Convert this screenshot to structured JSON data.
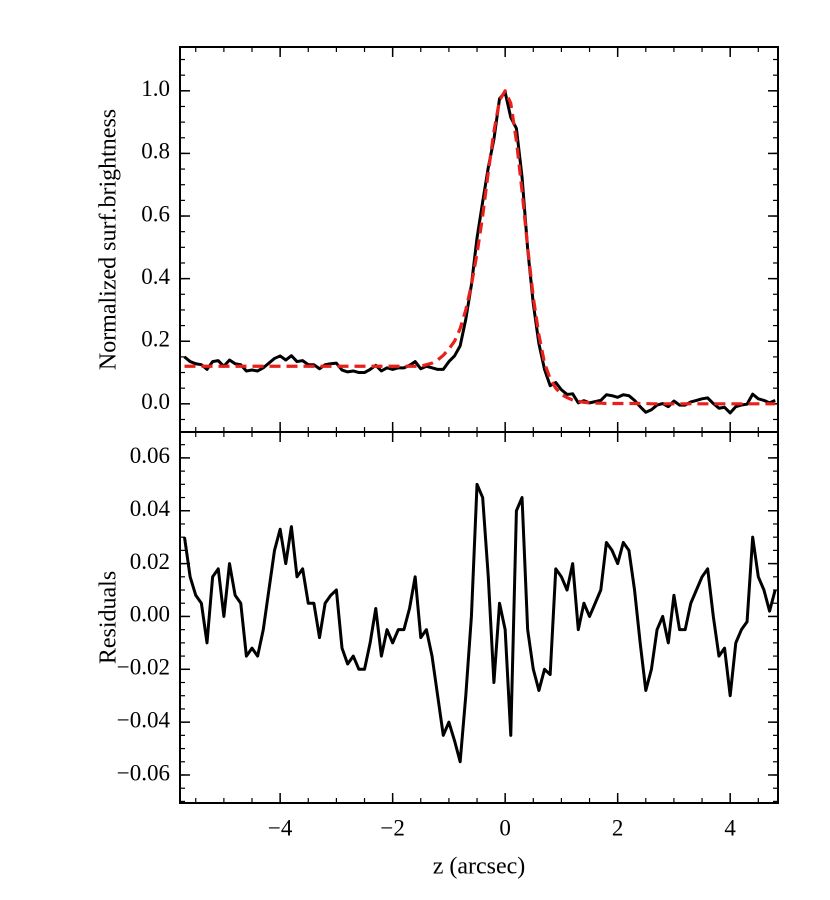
{
  "chart_data": [
    {
      "type": "line",
      "ylabel": "Normalized surf.brightness",
      "x": [
        -5.7,
        -5.6,
        -5.5,
        -5.4,
        -5.3,
        -5.2,
        -5.1,
        -5.0,
        -4.9,
        -4.8,
        -4.7,
        -4.6,
        -4.5,
        -4.4,
        -4.3,
        -4.2,
        -4.1,
        -4.0,
        -3.9,
        -3.8,
        -3.7,
        -3.6,
        -3.5,
        -3.4,
        -3.3,
        -3.2,
        -3.1,
        -3.0,
        -2.9,
        -2.8,
        -2.7,
        -2.6,
        -2.5,
        -2.4,
        -2.3,
        -2.2,
        -2.1,
        -2.0,
        -1.9,
        -1.8,
        -1.7,
        -1.6,
        -1.5,
        -1.4,
        -1.3,
        -1.2,
        -1.1,
        -1.0,
        -0.9,
        -0.8,
        -0.7,
        -0.6,
        -0.5,
        -0.4,
        -0.3,
        -0.2,
        -0.1,
        0,
        0.1,
        0.2,
        0.3,
        0.4,
        0.5,
        0.6,
        0.7,
        0.8,
        0.9,
        1.0,
        1.1,
        1.2,
        1.3,
        1.4,
        1.5,
        1.6,
        1.7,
        1.8,
        1.9,
        2.0,
        2.1,
        2.2,
        2.3,
        2.4,
        2.5,
        2.6,
        2.7,
        2.8,
        2.9,
        3.0,
        3.1,
        3.2,
        3.3,
        3.4,
        3.5,
        3.6,
        3.7,
        3.8,
        3.9,
        4.0,
        4.1,
        4.2,
        4.3,
        4.4,
        4.5,
        4.6,
        4.7,
        4.8
      ],
      "series": [
        {
          "color": "#000000",
          "linestyle": "solid",
          "values": [
            0.15,
            0.135,
            0.128,
            0.125,
            0.11,
            0.135,
            0.138,
            0.12,
            0.14,
            0.128,
            0.125,
            0.105,
            0.108,
            0.105,
            0.115,
            0.13,
            0.145,
            0.153,
            0.14,
            0.154,
            0.135,
            0.138,
            0.125,
            0.125,
            0.112,
            0.125,
            0.128,
            0.13,
            0.108,
            0.102,
            0.105,
            0.1,
            0.1,
            0.11,
            0.123,
            0.105,
            0.115,
            0.11,
            0.115,
            0.115,
            0.123,
            0.135,
            0.112,
            0.12,
            0.115,
            0.11,
            0.11,
            0.135,
            0.153,
            0.185,
            0.27,
            0.38,
            0.53,
            0.645,
            0.755,
            0.845,
            0.975,
            0.995,
            0.915,
            0.88,
            0.725,
            0.495,
            0.32,
            0.192,
            0.11,
            0.058,
            0.068,
            0.045,
            0.03,
            0.032,
            0.003,
            0.01,
            0.003,
            0.007,
            0.011,
            0.029,
            0.026,
            0.021,
            0.029,
            0.026,
            0.011,
            -0.009,
            -0.027,
            -0.019,
            -0.004,
            0.001,
            -0.009,
            0.009,
            -0.004,
            -0.004,
            0.006,
            0.011,
            0.016,
            0.019,
            0.001,
            -0.014,
            -0.011,
            -0.029,
            -0.009,
            -0.004,
            -0.001,
            0.031,
            0.016,
            0.011,
            0.003,
            0.011
          ]
        },
        {
          "color": "#e8201c",
          "linestyle": "dashed",
          "values": [
            0.12,
            0.12,
            0.12,
            0.12,
            0.12,
            0.12,
            0.12,
            0.12,
            0.12,
            0.12,
            0.12,
            0.12,
            0.12,
            0.12,
            0.12,
            0.12,
            0.12,
            0.12,
            0.12,
            0.12,
            0.12,
            0.12,
            0.12,
            0.12,
            0.12,
            0.12,
            0.12,
            0.12,
            0.12,
            0.12,
            0.12,
            0.12,
            0.12,
            0.12,
            0.12,
            0.12,
            0.12,
            0.12,
            0.12,
            0.12,
            0.12,
            0.12,
            0.12,
            0.125,
            0.13,
            0.14,
            0.155,
            0.175,
            0.2,
            0.24,
            0.3,
            0.38,
            0.48,
            0.6,
            0.74,
            0.87,
            0.97,
            1.0,
            0.96,
            0.84,
            0.68,
            0.5,
            0.34,
            0.22,
            0.13,
            0.08,
            0.05,
            0.03,
            0.02,
            0.012,
            0.008,
            0.005,
            0.003,
            0.002,
            0.002,
            0.001,
            0.001,
            0.001,
            0.001,
            0.001,
            0.001,
            0.001,
            0.001,
            0,
            0,
            0,
            0,
            0,
            0,
            0,
            0,
            0,
            0,
            0,
            0,
            0,
            0,
            0,
            0,
            0,
            0,
            0,
            0,
            0,
            0,
            0
          ]
        }
      ],
      "xlim": [
        -5.78,
        4.85
      ],
      "xticks": [
        -4,
        -2,
        0,
        2,
        4
      ],
      "ylim": [
        -0.09,
        1.14
      ],
      "yticks": [
        {
          "value": 0,
          "label": "0.0"
        },
        {
          "value": 0.2,
          "label": "0.2"
        },
        {
          "value": 0.4,
          "label": "0.4"
        },
        {
          "value": 0.6,
          "label": "0.6"
        },
        {
          "value": 0.8,
          "label": "0.8"
        },
        {
          "value": 1.0,
          "label": "1.0"
        }
      ]
    },
    {
      "type": "line",
      "ylabel": "Residuals",
      "xlabel": "z (arcsec)",
      "x": [
        -5.7,
        -5.6,
        -5.5,
        -5.4,
        -5.3,
        -5.2,
        -5.1,
        -5.0,
        -4.9,
        -4.8,
        -4.7,
        -4.6,
        -4.5,
        -4.4,
        -4.3,
        -4.2,
        -4.1,
        -4.0,
        -3.9,
        -3.8,
        -3.7,
        -3.6,
        -3.5,
        -3.4,
        -3.3,
        -3.2,
        -3.1,
        -3.0,
        -2.9,
        -2.8,
        -2.7,
        -2.6,
        -2.5,
        -2.4,
        -2.3,
        -2.2,
        -2.1,
        -2.0,
        -1.9,
        -1.8,
        -1.7,
        -1.6,
        -1.5,
        -1.4,
        -1.3,
        -1.2,
        -1.1,
        -1.0,
        -0.9,
        -0.8,
        -0.7,
        -0.6,
        -0.5,
        -0.4,
        -0.3,
        -0.2,
        -0.1,
        0,
        0.1,
        0.2,
        0.3,
        0.4,
        0.5,
        0.6,
        0.7,
        0.8,
        0.9,
        1.0,
        1.1,
        1.2,
        1.3,
        1.4,
        1.5,
        1.6,
        1.7,
        1.8,
        1.9,
        2.0,
        2.1,
        2.2,
        2.3,
        2.4,
        2.5,
        2.6,
        2.7,
        2.8,
        2.9,
        3.0,
        3.1,
        3.2,
        3.3,
        3.4,
        3.5,
        3.6,
        3.7,
        3.8,
        3.9,
        4.0,
        4.1,
        4.2,
        4.3,
        4.4,
        4.5,
        4.6,
        4.7,
        4.8
      ],
      "series": [
        {
          "color": "#000000",
          "linestyle": "solid",
          "values": [
            0.03,
            0.015,
            0.008,
            0.005,
            -0.01,
            0.015,
            0.018,
            0.0,
            0.02,
            0.008,
            0.005,
            -0.015,
            -0.012,
            -0.015,
            -0.005,
            0.01,
            0.025,
            0.033,
            0.02,
            0.034,
            0.015,
            0.018,
            0.005,
            0.005,
            -0.008,
            0.005,
            0.008,
            0.01,
            -0.012,
            -0.018,
            -0.015,
            -0.02,
            -0.02,
            -0.01,
            0.003,
            -0.015,
            -0.005,
            -0.01,
            -0.005,
            -0.005,
            0.003,
            0.015,
            -0.008,
            -0.005,
            -0.015,
            -0.03,
            -0.045,
            -0.04,
            -0.047,
            -0.055,
            -0.03,
            0.0,
            0.05,
            0.045,
            0.015,
            -0.025,
            0.005,
            -0.005,
            -0.045,
            0.04,
            0.045,
            -0.005,
            -0.02,
            -0.028,
            -0.02,
            -0.022,
            0.018,
            0.015,
            0.01,
            0.02,
            -0.005,
            0.005,
            0.0,
            0.005,
            0.01,
            0.028,
            0.025,
            0.02,
            0.028,
            0.025,
            0.01,
            -0.01,
            -0.028,
            -0.02,
            -0.005,
            0.0,
            -0.01,
            0.008,
            -0.005,
            -0.005,
            0.005,
            0.01,
            0.015,
            0.018,
            0.0,
            -0.015,
            -0.012,
            -0.03,
            -0.01,
            -0.005,
            -0.002,
            0.03,
            0.015,
            0.01,
            0.002,
            0.01
          ]
        }
      ],
      "xlim": [
        -5.78,
        4.85
      ],
      "xticks": [
        {
          "value": -4,
          "label": "−4"
        },
        {
          "value": -2,
          "label": "−2"
        },
        {
          "value": 0,
          "label": "0"
        },
        {
          "value": 2,
          "label": "2"
        },
        {
          "value": 4,
          "label": "4"
        }
      ],
      "ylim": [
        -0.0706,
        0.0698
      ],
      "yticks": [
        {
          "value": -0.06,
          "label": "−0.06"
        },
        {
          "value": -0.04,
          "label": "−0.04"
        },
        {
          "value": -0.02,
          "label": "−0.02"
        },
        {
          "value": 0,
          "label": "0.00"
        },
        {
          "value": 0.02,
          "label": "0.02"
        },
        {
          "value": 0.04,
          "label": "0.04"
        },
        {
          "value": 0.06,
          "label": "0.06"
        }
      ]
    }
  ]
}
